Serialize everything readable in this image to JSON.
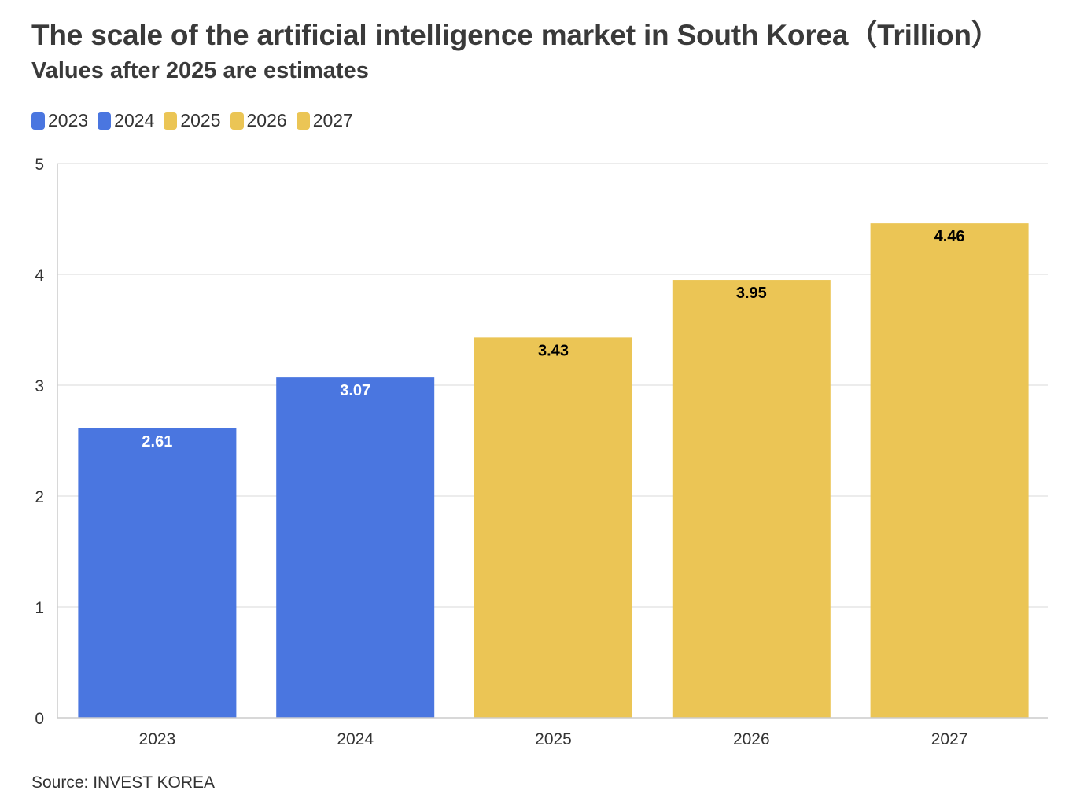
{
  "title": "The scale of the artificial intelligence market in South Korea（Trillion）",
  "subtitle": "Values after 2025 are estimates",
  "source": "Source: INVEST KOREA",
  "colors": {
    "actual": "#4a76e0",
    "estimate": "#ebc555",
    "grid": "#e6e6e6",
    "axis": "#cccccc",
    "label_dark": "#000000",
    "label_light": "#ffffff"
  },
  "legend": [
    {
      "label": "2023",
      "color": "#4a76e0"
    },
    {
      "label": "2024",
      "color": "#4a76e0"
    },
    {
      "label": "2025",
      "color": "#ebc555"
    },
    {
      "label": "2026",
      "color": "#ebc555"
    },
    {
      "label": "2027",
      "color": "#ebc555"
    }
  ],
  "chart_data": {
    "type": "bar",
    "categories": [
      "2023",
      "2024",
      "2025",
      "2026",
      "2027"
    ],
    "values": [
      2.61,
      3.07,
      3.43,
      3.95,
      4.46
    ],
    "data_labels": [
      "2.61",
      "3.07",
      "3.43",
      "3.95",
      "4.46"
    ],
    "bar_colors": [
      "#4a76e0",
      "#4a76e0",
      "#ebc555",
      "#ebc555",
      "#ebc555"
    ],
    "label_colors": [
      "#ffffff",
      "#ffffff",
      "#000000",
      "#000000",
      "#000000"
    ],
    "ylim": [
      0,
      5
    ],
    "yticks": [
      0,
      1,
      2,
      3,
      4,
      5
    ],
    "grid": true,
    "legend_position": "top-left"
  }
}
